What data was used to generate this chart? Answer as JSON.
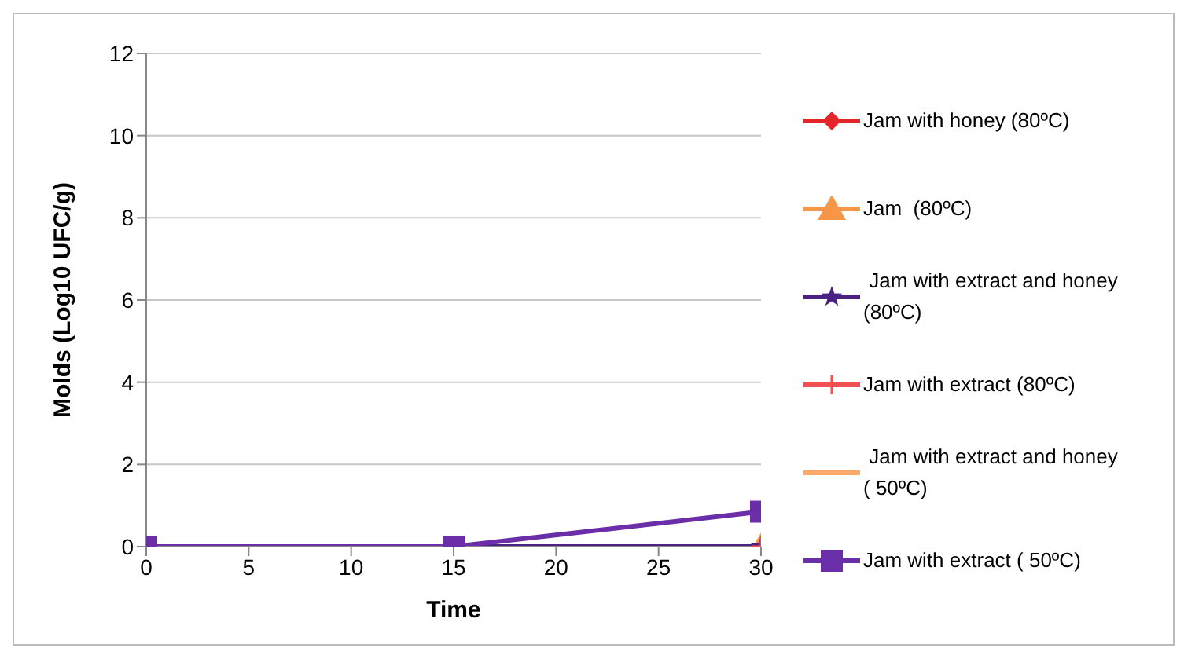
{
  "chart_data": {
    "type": "line",
    "xlabel": "Time",
    "ylabel": "Molds (Log10 UFC/g)",
    "x": [
      0,
      15,
      30
    ],
    "xlim": [
      0,
      30
    ],
    "xticks": [
      0,
      5,
      10,
      15,
      20,
      25,
      30
    ],
    "ylim": [
      0,
      12
    ],
    "yticks": [
      0,
      2,
      4,
      6,
      8,
      10,
      12
    ],
    "grid": "y",
    "legend": "right",
    "line_style": "solid",
    "series": [
      {
        "name": "Jam with honey (80ºC)",
        "color": "#e3262a",
        "marker": "diamond",
        "values": [
          null,
          null,
          null
        ]
      },
      {
        "name": "Jam  (80ºC)",
        "color": "#f79646",
        "marker": "triangle",
        "values": [
          null,
          null,
          0
        ]
      },
      {
        "name": " Jam with extract and honey (80ºC)",
        "color": "#4b2283",
        "marker": "star",
        "values": [
          null,
          0,
          0
        ]
      },
      {
        "name": "Jam with extract (80ºC)",
        "color": "#f0504f",
        "marker": "cross",
        "values": [
          null,
          null,
          0
        ]
      },
      {
        "name": " Jam with extract and honey ( 50ºC)",
        "color": "#fbaa6a",
        "marker": "none",
        "values": [
          null,
          null,
          null
        ]
      },
      {
        "name": "Jam with extract ( 50ºC)",
        "color": "#6a2fa8",
        "marker": "square",
        "values": [
          0,
          0,
          0.85
        ]
      }
    ]
  }
}
